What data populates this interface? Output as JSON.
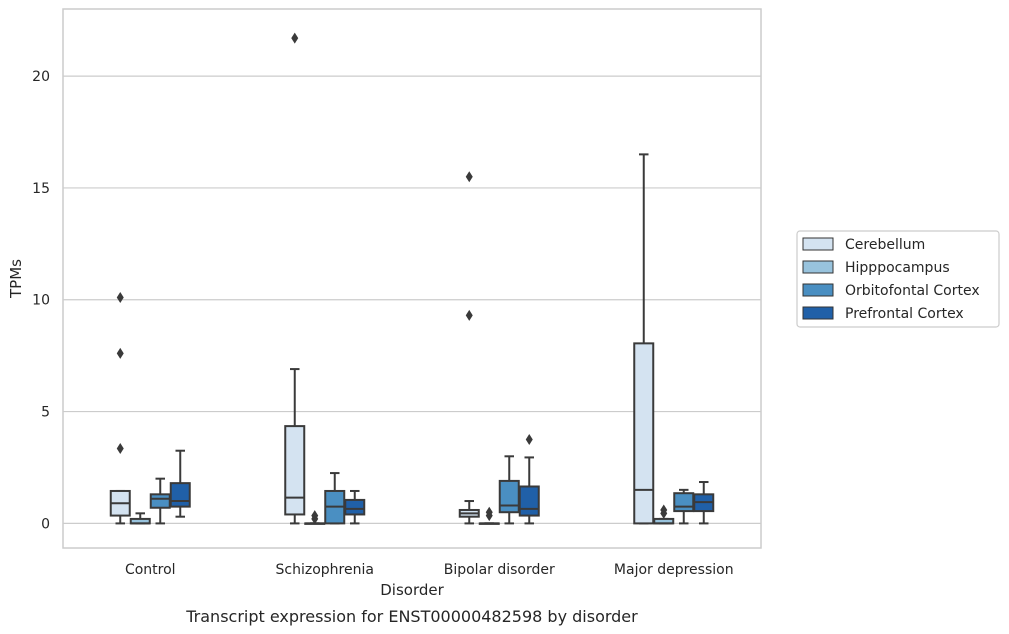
{
  "caption": "Transcript expression for ENST00000482598 by disorder",
  "colors": {
    "Cerebellum": "#d4e3f1",
    "Hipppocampus": "#98c3dd",
    "Orbitofontal Cortex": "#4a8fc2",
    "Prefrontal Cortex": "#2060a8",
    "line": "#3a3a3a",
    "grid": "#cccccc"
  },
  "chart_data": {
    "type": "box",
    "xlabel": "Disorder",
    "ylabel": "TPMs",
    "categories": [
      "Control",
      "Schizophrenia",
      "Bipolar disorder",
      "Major depression"
    ],
    "ylim": [
      -1.1,
      23.0
    ],
    "yticks": [
      0,
      5,
      10,
      15,
      20
    ],
    "grid": true,
    "legend_position": "right",
    "series": [
      {
        "name": "Cerebellum",
        "boxes": [
          {
            "whislo": 0.0,
            "q1": 0.35,
            "med": 0.9,
            "q3": 1.45,
            "whishi": 1.45,
            "fliers": [
              3.35,
              7.6,
              10.1
            ]
          },
          {
            "whislo": 0.0,
            "q1": 0.4,
            "med": 1.15,
            "q3": 4.35,
            "whishi": 6.9,
            "fliers": [
              21.7
            ]
          },
          {
            "whislo": 0.0,
            "q1": 0.3,
            "med": 0.45,
            "q3": 0.6,
            "whishi": 1.0,
            "fliers": [
              9.3,
              15.5
            ]
          },
          {
            "whislo": 0.0,
            "q1": 0.0,
            "med": 1.5,
            "q3": 8.05,
            "whishi": 16.5,
            "fliers": []
          }
        ]
      },
      {
        "name": "Hipppocampus",
        "boxes": [
          {
            "whislo": 0.0,
            "q1": 0.0,
            "med": 0.0,
            "q3": 0.2,
            "whishi": 0.45,
            "fliers": []
          },
          {
            "whislo": 0.0,
            "q1": 0.0,
            "med": 0.0,
            "q3": 0.0,
            "whishi": 0.0,
            "fliers": [
              0.2,
              0.35
            ]
          },
          {
            "whislo": 0.0,
            "q1": 0.0,
            "med": 0.0,
            "q3": 0.0,
            "whishi": 0.0,
            "fliers": [
              0.35,
              0.5
            ]
          },
          {
            "whislo": 0.0,
            "q1": 0.0,
            "med": 0.0,
            "q3": 0.2,
            "whishi": 0.2,
            "fliers": [
              0.45,
              0.6
            ]
          }
        ]
      },
      {
        "name": "Orbitofontal Cortex",
        "boxes": [
          {
            "whislo": 0.0,
            "q1": 0.7,
            "med": 1.1,
            "q3": 1.3,
            "whishi": 2.0,
            "fliers": []
          },
          {
            "whislo": 0.0,
            "q1": 0.0,
            "med": 0.75,
            "q3": 1.45,
            "whishi": 2.25,
            "fliers": []
          },
          {
            "whislo": 0.0,
            "q1": 0.5,
            "med": 0.8,
            "q3": 1.9,
            "whishi": 3.0,
            "fliers": []
          },
          {
            "whislo": 0.0,
            "q1": 0.55,
            "med": 0.75,
            "q3": 1.35,
            "whishi": 1.5,
            "fliers": []
          }
        ]
      },
      {
        "name": "Prefrontal Cortex",
        "boxes": [
          {
            "whislo": 0.3,
            "q1": 0.75,
            "med": 1.0,
            "q3": 1.8,
            "whishi": 3.25,
            "fliers": []
          },
          {
            "whislo": 0.0,
            "q1": 0.4,
            "med": 0.65,
            "q3": 1.05,
            "whishi": 1.45,
            "fliers": []
          },
          {
            "whislo": 0.0,
            "q1": 0.35,
            "med": 0.65,
            "q3": 1.65,
            "whishi": 2.95,
            "fliers": [
              3.75
            ]
          },
          {
            "whislo": 0.0,
            "q1": 0.55,
            "med": 0.95,
            "q3": 1.3,
            "whishi": 1.85,
            "fliers": []
          }
        ]
      }
    ]
  }
}
